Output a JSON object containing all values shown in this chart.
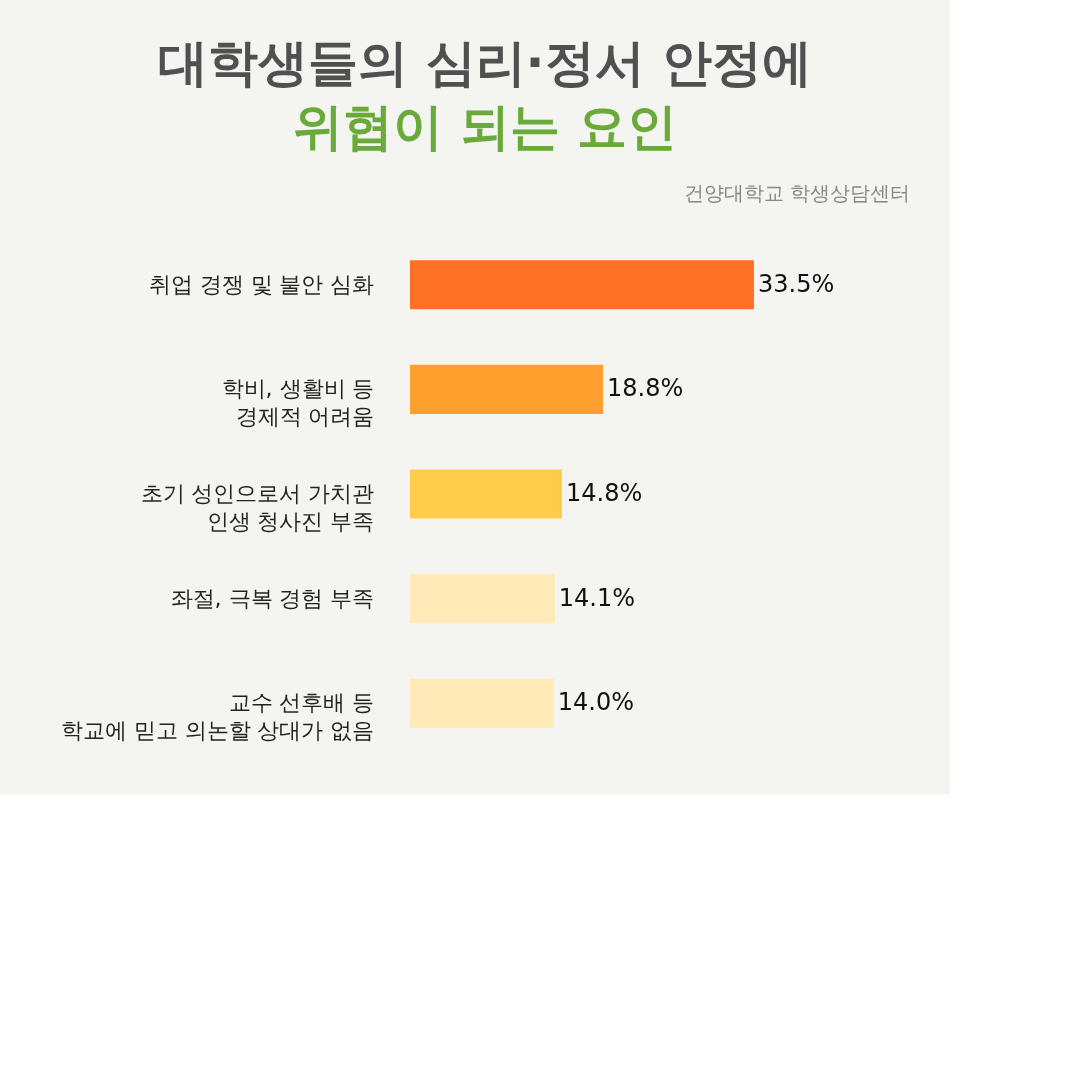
{
  "chart_data": {
    "type": "bar",
    "orientation": "horizontal",
    "title": "대학생들의 심리·정서 안정에",
    "subtitle": "위협이 되는 요인",
    "annotations": [
      "건양대학교 학생상담센터"
    ],
    "categories": [
      "취업 경쟁 및 불안 심화",
      "학비, 생활비 등\n경제적 어려움",
      "초기 성인으로서 가치관\n인생 청사진 부족",
      "좌절, 극복 경험 부족",
      "교수 선후배 등\n학교에 믿고 의논할 상대가 없음"
    ],
    "values": [
      33.5,
      18.8,
      14.8,
      14.1,
      14.0
    ],
    "colors": [
      "#ff7124",
      "#ffa02e",
      "#ffcb4a",
      "#ffeab8",
      "#ffeab8"
    ],
    "value_labels": [
      "33.5%",
      "18.8%",
      "14.8%",
      "14.1%",
      "14.0%"
    ],
    "legend": false,
    "grid": false
  }
}
